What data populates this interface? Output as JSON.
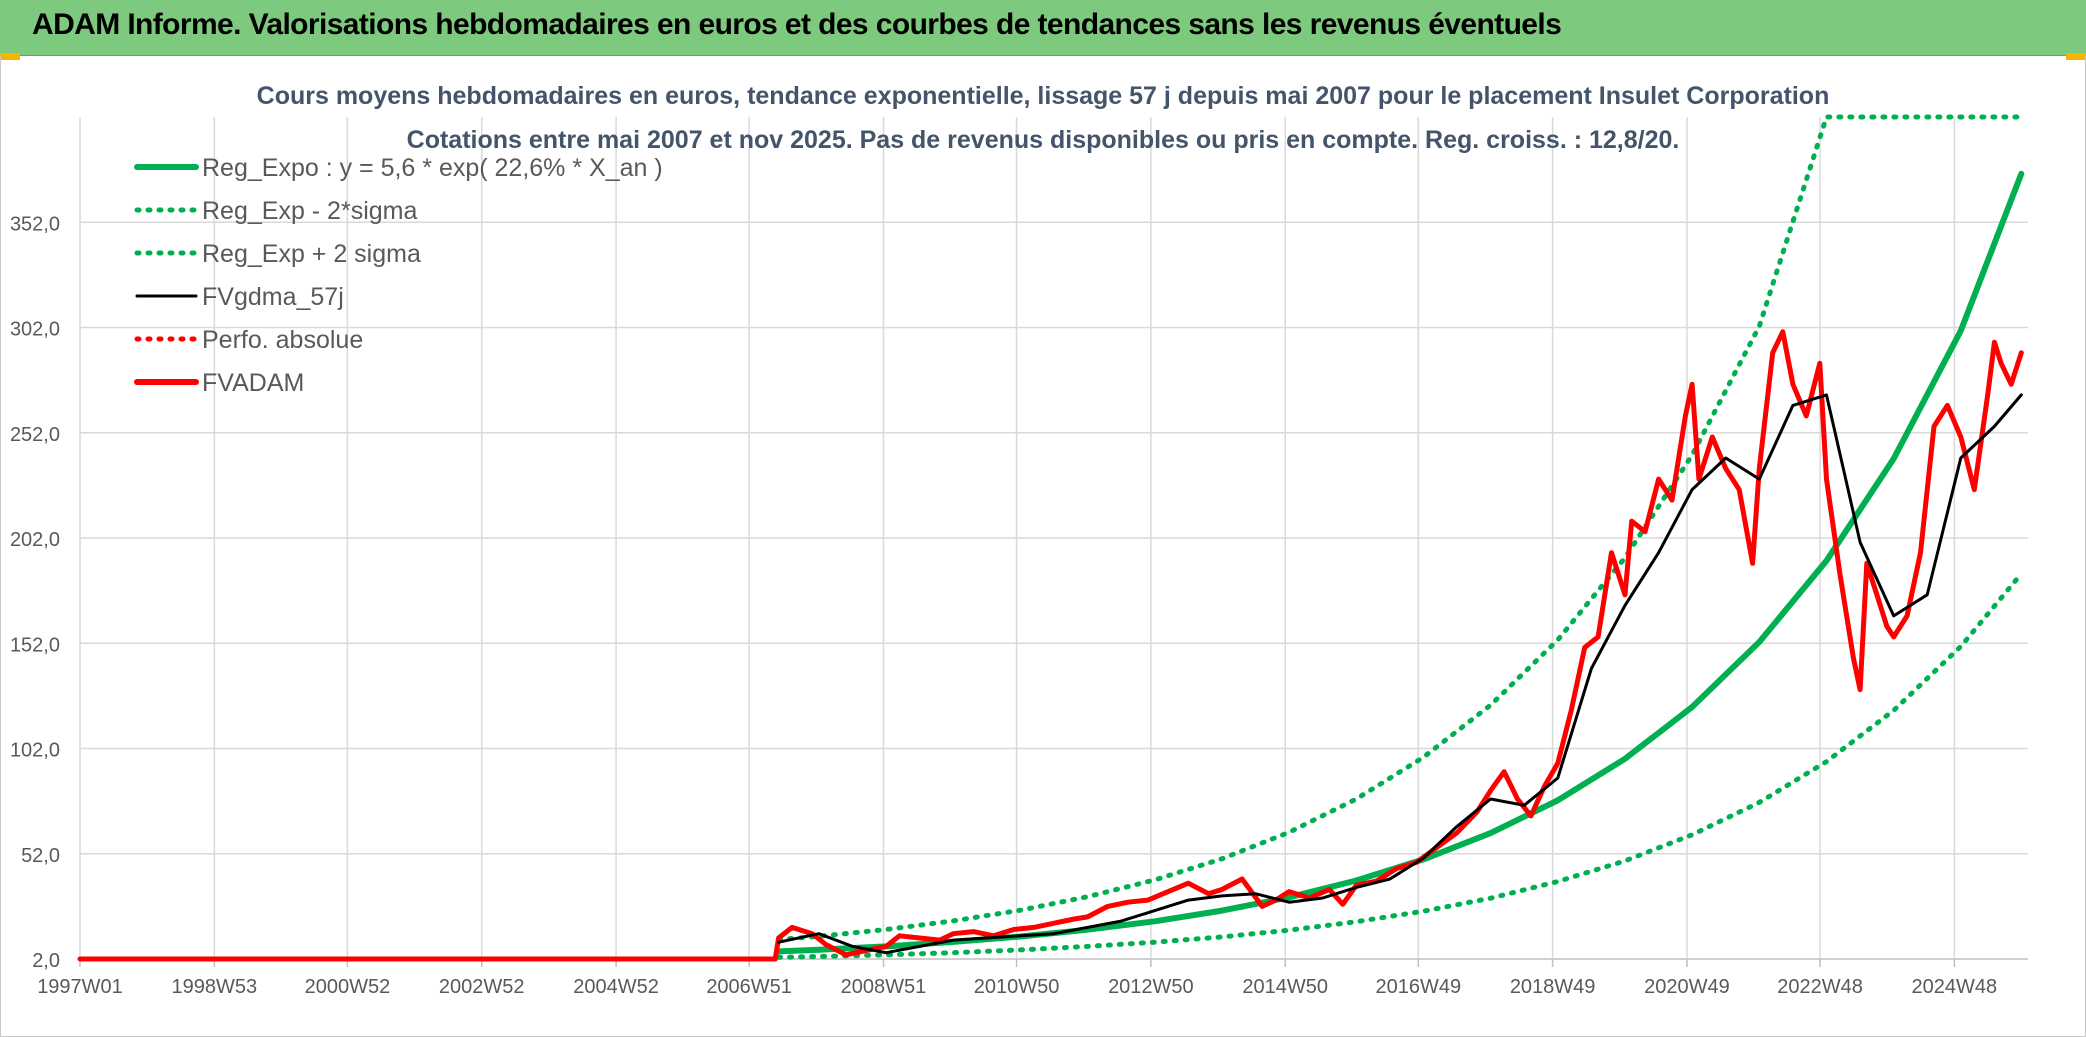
{
  "header": {
    "title": "ADAM Informe. Valorisations hebdomadaires en euros et des courbes de tendances sans les revenus éventuels"
  },
  "colors": {
    "banner": "#7dc97d",
    "regression": "#00b050",
    "smoothing": "#000000",
    "price": "#ff0000",
    "grid": "#d9d9d9"
  },
  "chart_data": {
    "type": "line",
    "title": "Cours moyens hebdomadaires en euros, tendance exponentielle, lissage 57 j depuis mai 2007 pour le placement Insulet Corporation",
    "subtitle": "Cotations entre mai 2007 et nov 2025. Pas de revenus disponibles ou pris en compte. Reg. croiss. : 12,8/20.",
    "xlabel": "",
    "ylabel": "",
    "x_ticks": [
      "1997W01",
      "1998W53",
      "2000W52",
      "2002W52",
      "2004W52",
      "2006W51",
      "2008W51",
      "2010W50",
      "2012W50",
      "2014W50",
      "2016W49",
      "2018W49",
      "2020W49",
      "2022W48",
      "2024W48"
    ],
    "y_ticks": [
      "2,0",
      "52,0",
      "102,0",
      "152,0",
      "202,0",
      "252,0",
      "302,0",
      "352,0"
    ],
    "ylim": [
      2,
      402
    ],
    "xlim": [
      1997.0,
      2026.0
    ],
    "grid": true,
    "legend_position": "top-left",
    "series": [
      {
        "name": "Reg_Expo : y = 5,6 * exp( 22,6% *  X_an )",
        "style": "solid-thick",
        "color": "#00b050",
        "x": [
          2007.4,
          2008.0,
          2009.0,
          2010.0,
          2011.0,
          2012.0,
          2013.0,
          2014.0,
          2015.0,
          2016.0,
          2017.0,
          2018.0,
          2019.0,
          2020.0,
          2021.0,
          2022.0,
          2023.0,
          2024.0,
          2025.0,
          2025.9
        ],
        "y": [
          5.6,
          6.4,
          8.0,
          10.1,
          12.7,
          15.9,
          19.9,
          25.0,
          31.3,
          39.3,
          49.3,
          61.8,
          77.4,
          97.1,
          121.7,
          152.6,
          191.2,
          239.7,
          300.5,
          375.0
        ]
      },
      {
        "name": "Reg_Exp - 2*sigma",
        "style": "dotted",
        "color": "#00b050",
        "x": [
          2007.4,
          2008.0,
          2009.0,
          2010.0,
          2011.0,
          2012.0,
          2013.0,
          2014.0,
          2015.0,
          2016.0,
          2017.0,
          2018.0,
          2019.0,
          2020.0,
          2021.0,
          2022.0,
          2023.0,
          2024.0,
          2025.0,
          2025.9
        ],
        "y": [
          2.8,
          3.2,
          4.0,
          5.0,
          6.3,
          8.0,
          10.0,
          12.5,
          15.7,
          19.7,
          24.7,
          30.9,
          38.8,
          48.6,
          61.0,
          76.4,
          95.8,
          120.1,
          150.5,
          185.0
        ]
      },
      {
        "name": "Reg_Exp + 2 sigma",
        "style": "dotted",
        "color": "#00b050",
        "x": [
          2007.4,
          2008.0,
          2009.0,
          2010.0,
          2011.0,
          2012.0,
          2013.0,
          2014.0,
          2015.0,
          2016.0,
          2017.0,
          2018.0,
          2019.0,
          2020.0,
          2021.0,
          2022.0,
          2023.0,
          2024.0,
          2025.0,
          2025.9
        ],
        "y": [
          11.2,
          12.8,
          16.0,
          20.1,
          25.2,
          31.6,
          39.6,
          49.6,
          62.2,
          78.0,
          97.8,
          122.6,
          153.6,
          192.6,
          241.4,
          302.6,
          402.0,
          402.0,
          402.0,
          402.0
        ]
      },
      {
        "name": "FVgdma_57j",
        "style": "solid",
        "color": "#000000",
        "x": [
          2007.4,
          2008.0,
          2008.5,
          2009.0,
          2009.5,
          2010.0,
          2010.5,
          2011.0,
          2011.5,
          2012.0,
          2012.5,
          2013.0,
          2013.5,
          2014.0,
          2014.5,
          2015.0,
          2015.5,
          2016.0,
          2016.5,
          2017.0,
          2017.5,
          2018.0,
          2018.5,
          2019.0,
          2019.5,
          2020.0,
          2020.5,
          2021.0,
          2021.5,
          2022.0,
          2022.5,
          2023.0,
          2023.5,
          2024.0,
          2024.5,
          2025.0,
          2025.5,
          2025.9
        ],
        "y": [
          10,
          14,
          8,
          5,
          8,
          11,
          12,
          13,
          14,
          17,
          20,
          25,
          30,
          32,
          33,
          29,
          31,
          36,
          40,
          50,
          65,
          78,
          75,
          88,
          140,
          170,
          195,
          225,
          240,
          230,
          265,
          270,
          200,
          165,
          175,
          240,
          255,
          270
        ]
      },
      {
        "name": "Perfo. absolue",
        "style": "dotted",
        "color": "#ff0000",
        "x": [],
        "y": []
      },
      {
        "name": "FVADAM",
        "style": "solid-thick",
        "color": "#ff0000",
        "x": [
          1997.0,
          2007.35,
          2007.4,
          2007.6,
          2007.9,
          2008.1,
          2008.4,
          2008.7,
          2009.0,
          2009.2,
          2009.5,
          2009.8,
          2010.0,
          2010.3,
          2010.6,
          2010.9,
          2011.2,
          2011.5,
          2011.8,
          2012.0,
          2012.3,
          2012.6,
          2012.9,
          2013.2,
          2013.5,
          2013.8,
          2014.0,
          2014.3,
          2014.6,
          2014.8,
          2015.0,
          2015.3,
          2015.6,
          2015.8,
          2016.0,
          2016.3,
          2016.6,
          2016.9,
          2017.2,
          2017.5,
          2017.8,
          2018.0,
          2018.2,
          2018.4,
          2018.6,
          2018.8,
          2019.0,
          2019.2,
          2019.4,
          2019.6,
          2019.8,
          2020.0,
          2020.1,
          2020.3,
          2020.5,
          2020.7,
          2020.9,
          2021.0,
          2021.1,
          2021.3,
          2021.5,
          2021.7,
          2021.9,
          2022.0,
          2022.2,
          2022.35,
          2022.5,
          2022.7,
          2022.9,
          2023.0,
          2023.2,
          2023.4,
          2023.5,
          2023.6,
          2023.75,
          2023.9,
          2024.0,
          2024.2,
          2024.4,
          2024.6,
          2024.8,
          2025.0,
          2025.2,
          2025.4,
          2025.5,
          2025.6,
          2025.75,
          2025.9
        ],
        "y": [
          2,
          2,
          12,
          17,
          14,
          9,
          4,
          6,
          8,
          13,
          12,
          11,
          14,
          15,
          13,
          16,
          17,
          19,
          21,
          22,
          27,
          29,
          30,
          34,
          38,
          33,
          35,
          40,
          27,
          30,
          34,
          31,
          35,
          28,
          37,
          39,
          45,
          48,
          55,
          62,
          72,
          82,
          91,
          78,
          70,
          84,
          95,
          120,
          150,
          155,
          195,
          175,
          210,
          205,
          230,
          220,
          260,
          275,
          230,
          250,
          235,
          225,
          190,
          235,
          290,
          300,
          275,
          260,
          285,
          230,
          185,
          145,
          130,
          190,
          175,
          160,
          155,
          165,
          195,
          255,
          265,
          250,
          225,
          270,
          295,
          285,
          275,
          290
        ]
      }
    ]
  }
}
